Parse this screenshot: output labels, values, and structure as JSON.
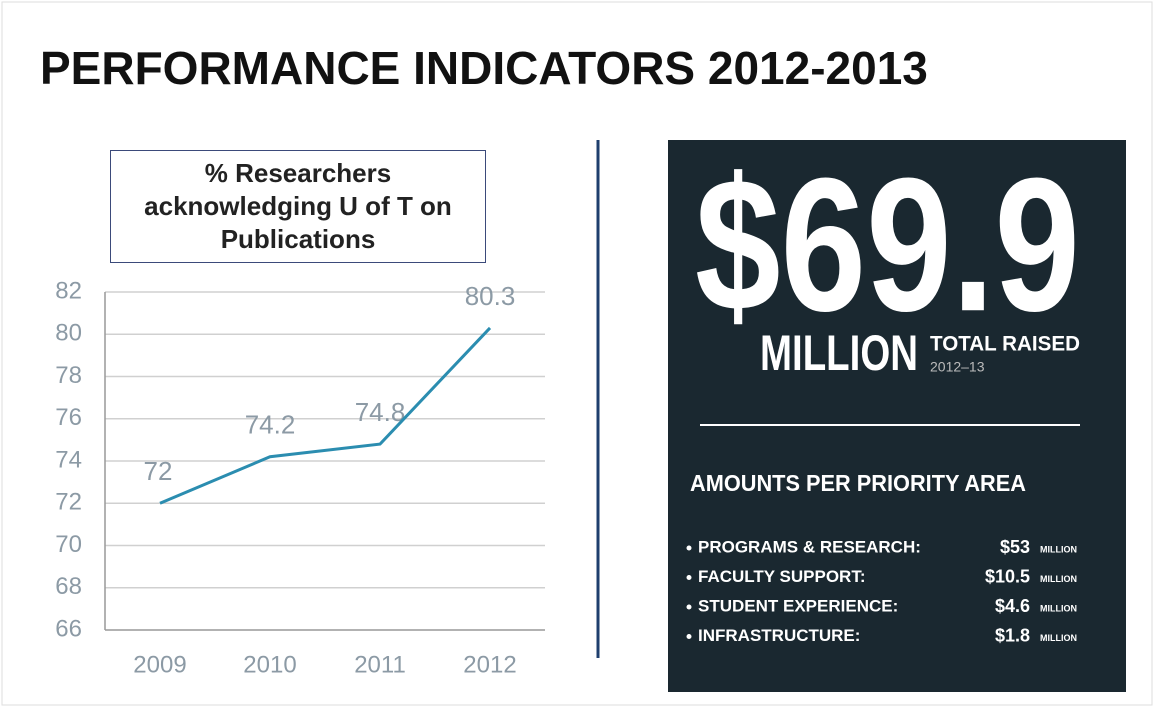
{
  "title": "PERFORMANCE INDICATORS 2012-2013",
  "chart_data": {
    "type": "line",
    "title": "% Researchers acknowledging U of T on Publications",
    "categories": [
      "2009",
      "2010",
      "2011",
      "2012"
    ],
    "values": [
      72,
      74.2,
      74.8,
      80.3
    ],
    "color": "#2b8db0",
    "ylim": [
      66,
      82
    ],
    "yticks": [
      66,
      68,
      70,
      72,
      74,
      76,
      78,
      80,
      82
    ],
    "grid": true
  },
  "infographic": {
    "total": "$69.9",
    "unit": "MILLION",
    "caption": "TOTAL RAISED",
    "period": "2012–13",
    "heading": "AMOUNTS PER PRIORITY AREA",
    "items": [
      {
        "label": "PROGRAMS & RESEARCH:",
        "amount": "$53",
        "unit": "MILLION"
      },
      {
        "label": "FACULTY SUPPORT:",
        "amount": "$10.5",
        "unit": "MILLION"
      },
      {
        "label": "STUDENT EXPERIENCE:",
        "amount": "$4.6",
        "unit": "MILLION"
      },
      {
        "label": "INFRASTRUCTURE:",
        "amount": "$1.8",
        "unit": "MILLION"
      }
    ]
  }
}
